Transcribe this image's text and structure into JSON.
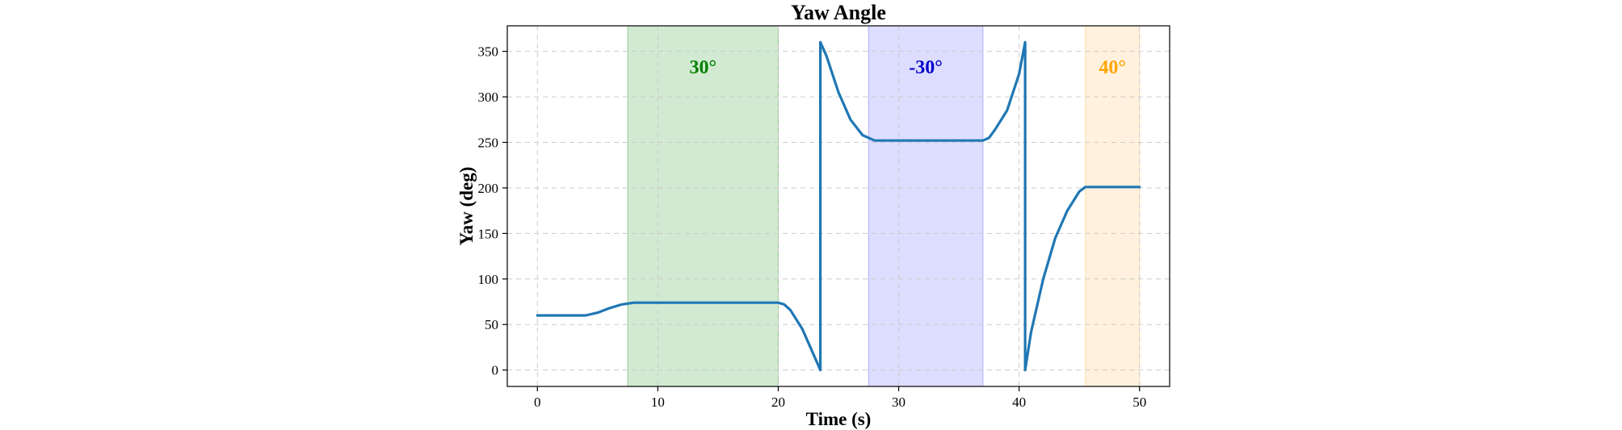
{
  "chart_data": {
    "type": "line",
    "title": "Yaw Angle",
    "xlabel": "Time (s)",
    "ylabel": "Yaw (deg)",
    "xlim": [
      -2.5,
      52.5
    ],
    "ylim": [
      -18,
      378
    ],
    "xticks": [
      0,
      10,
      20,
      30,
      40,
      50
    ],
    "yticks": [
      0,
      50,
      100,
      150,
      200,
      250,
      300,
      350
    ],
    "grid": true,
    "bands": [
      {
        "label": "30°",
        "x_start": 7.5,
        "x_end": 20,
        "color": "#2ca02c",
        "label_color": "#008000"
      },
      {
        "label": "-30°",
        "x_start": 27.5,
        "x_end": 37,
        "color": "#6666ff",
        "label_color": "#0000cc"
      },
      {
        "label": "40°",
        "x_start": 45.5,
        "x_end": 50,
        "color": "#ffbf66",
        "label_color": "#ffa500"
      }
    ],
    "series": [
      {
        "name": "Yaw",
        "color": "#1f77b4",
        "x": [
          0,
          4,
          5,
          6,
          7,
          7.5,
          8,
          20,
          20.5,
          21,
          22,
          23,
          23.5,
          23.5,
          24,
          25,
          26,
          27,
          28,
          37,
          37.5,
          38,
          39,
          40,
          40.5,
          40.5,
          41,
          42,
          43,
          44,
          45,
          45.5,
          50
        ],
        "y": [
          60,
          60,
          63,
          68,
          72,
          73,
          74,
          74,
          72,
          66,
          45,
          15,
          0,
          360,
          345,
          305,
          275,
          258,
          252,
          252,
          255,
          264,
          285,
          325,
          360,
          0,
          42,
          100,
          145,
          175,
          196,
          201,
          201
        ]
      }
    ]
  }
}
